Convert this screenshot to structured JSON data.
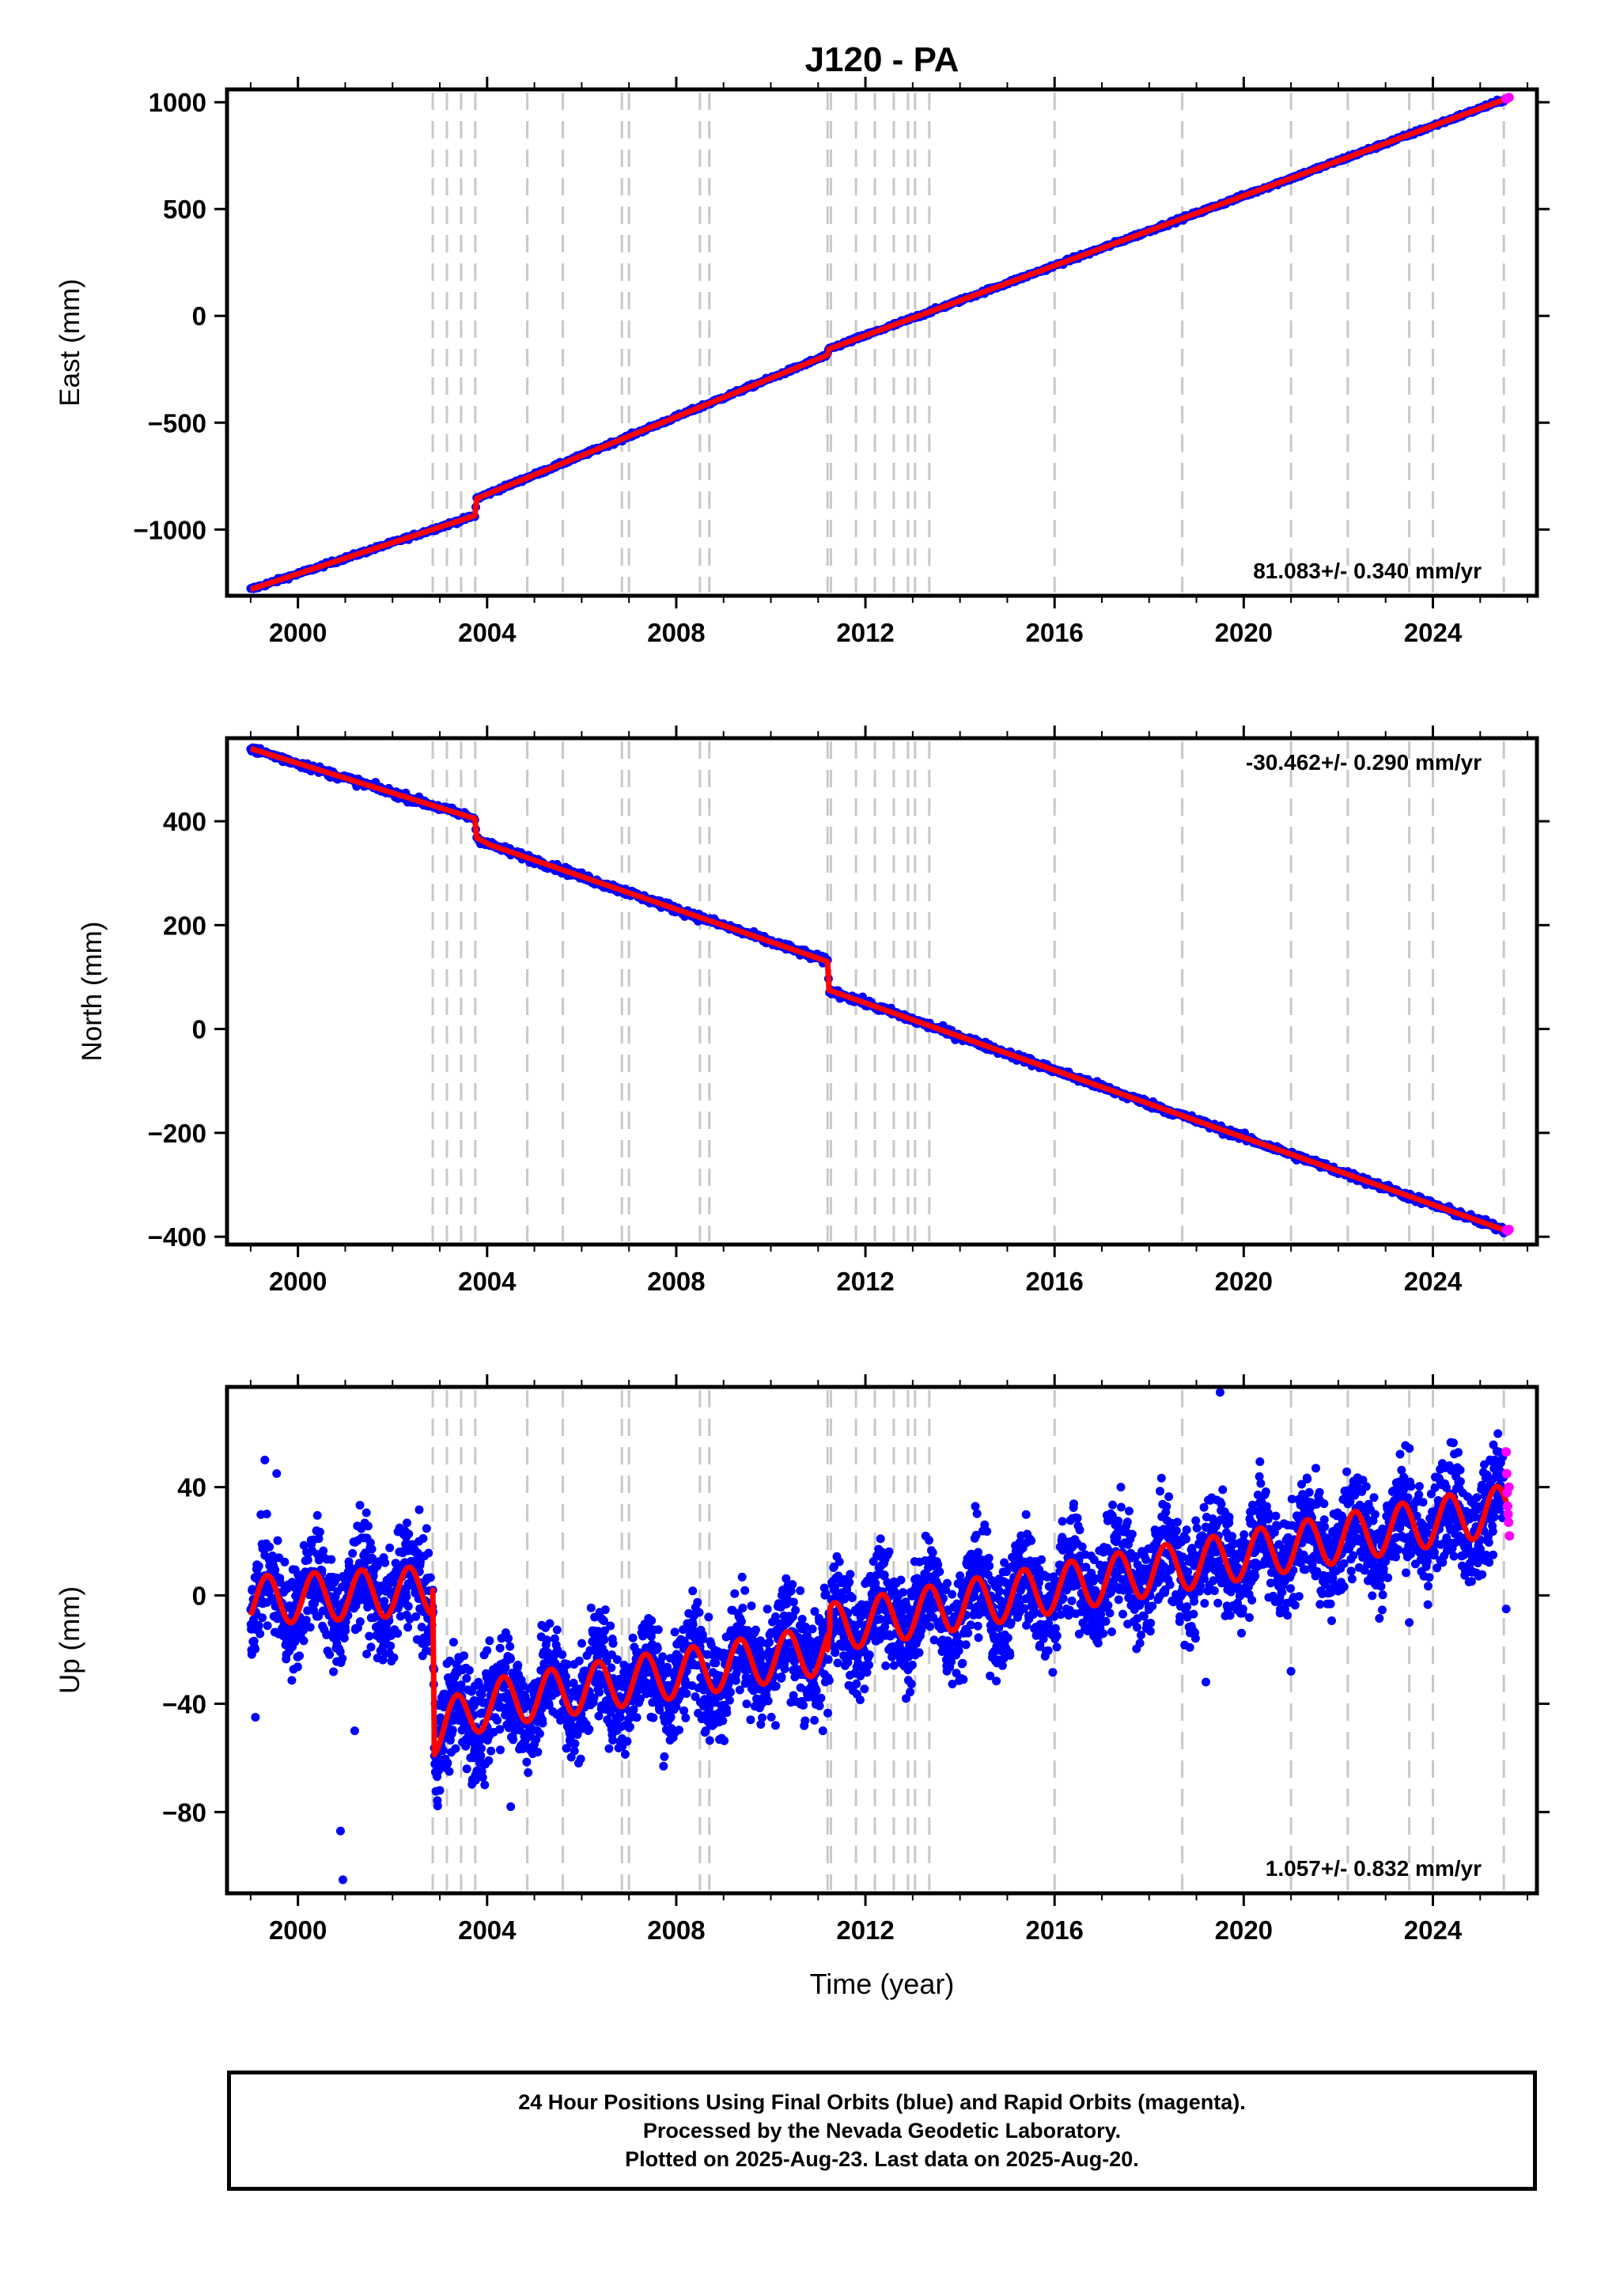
{
  "title": "J120 - PA",
  "xlabel": "Time (year)",
  "x_ticks": [
    "2000",
    "2004",
    "2008",
    "2012",
    "2016",
    "2020",
    "2024"
  ],
  "footer": {
    "line1": "24 Hour Positions Using Final Orbits (blue) and Rapid Orbits (magenta).",
    "line2": "Processed by the Nevada Geodetic Laboratory.",
    "line3": "Plotted on 2025-Aug-23. Last data on 2025-Aug-20."
  },
  "colors": {
    "final": "#0000ff",
    "rapid": "#ff00ff",
    "model": "#ff0000",
    "event_line": "#c8c8c8"
  },
  "chart_data": [
    {
      "type": "scatter",
      "ylabel": "East (mm)",
      "xlim": [
        1998.5,
        2026.2
      ],
      "ylim": [
        -1310,
        1060
      ],
      "y_ticks": [
        "1000",
        "500",
        "0",
        "−500",
        "−1000"
      ],
      "y_tick_values": [
        1000,
        500,
        0,
        -500,
        -1000
      ],
      "rate_label": "81.083+/- 0.340 mm/yr",
      "rate_position": "bottom-right",
      "event_lines": [
        2002.85,
        2003.15,
        2003.45,
        2003.75,
        2004.85,
        2005.6,
        2006.85,
        2007.0,
        2008.5,
        2008.7,
        2011.2,
        2011.27,
        2011.8,
        2012.2,
        2012.6,
        2012.9,
        2013.05,
        2013.35,
        2016.0,
        2018.7,
        2021.0,
        2022.2,
        2023.5,
        2024.0,
        2025.5
      ],
      "model_segments": [
        {
          "x": [
            1999.0,
            2003.74
          ],
          "y": [
            -1280,
            -935
          ]
        },
        {
          "x": [
            2003.74,
            2003.78
          ],
          "y": [
            -935,
            -855
          ]
        },
        {
          "x": [
            2003.78,
            2004.05
          ],
          "y": [
            -855,
            -830
          ]
        },
        {
          "x": [
            2004.05,
            2011.2
          ],
          "y": [
            -830,
            -183
          ]
        },
        {
          "x": [
            2011.2,
            2011.23
          ],
          "y": [
            -183,
            -155
          ]
        },
        {
          "x": [
            2011.23,
            2025.6
          ],
          "y": [
            -155,
            1020
          ]
        }
      ],
      "scatter_spread": 6,
      "rapid_points": {
        "x": [
          2025.55,
          2025.58,
          2025.61
        ],
        "y": [
          1016,
          1019,
          1022
        ]
      }
    },
    {
      "type": "scatter",
      "ylabel": "North (mm)",
      "xlim": [
        1998.5,
        2026.2
      ],
      "ylim": [
        -415,
        560
      ],
      "y_ticks": [
        "400",
        "200",
        "0",
        "−200",
        "−400"
      ],
      "y_tick_values": [
        400,
        200,
        0,
        -200,
        -400
      ],
      "rate_label": "-30.462+/- 0.290 mm/yr",
      "rate_position": "top-right",
      "event_lines": [
        2002.85,
        2003.15,
        2003.45,
        2003.75,
        2004.85,
        2005.6,
        2006.85,
        2007.0,
        2008.5,
        2008.7,
        2011.2,
        2011.27,
        2011.8,
        2012.2,
        2012.6,
        2012.9,
        2013.05,
        2013.35,
        2016.0,
        2018.7,
        2021.0,
        2022.2,
        2023.5,
        2024.0,
        2025.5
      ],
      "model_segments": [
        {
          "x": [
            1999.0,
            2003.74
          ],
          "y": [
            540,
            405
          ]
        },
        {
          "x": [
            2003.74,
            2003.78
          ],
          "y": [
            405,
            368
          ]
        },
        {
          "x": [
            2003.78,
            2004.05
          ],
          "y": [
            368,
            355
          ]
        },
        {
          "x": [
            2004.05,
            2011.2
          ],
          "y": [
            355,
            130
          ]
        },
        {
          "x": [
            2011.2,
            2011.23
          ],
          "y": [
            130,
            75
          ]
        },
        {
          "x": [
            2011.23,
            2025.6
          ],
          "y": [
            75,
            -390
          ]
        }
      ],
      "scatter_spread": 5,
      "rapid_points": {
        "x": [
          2025.55,
          2025.58,
          2025.61
        ],
        "y": [
          -387,
          -389,
          -386
        ]
      }
    },
    {
      "type": "scatter",
      "ylabel": "Up (mm)",
      "xlim": [
        1998.5,
        2026.2
      ],
      "ylim": [
        -110,
        77
      ],
      "y_ticks": [
        "40",
        "0",
        "−40",
        "−80"
      ],
      "y_tick_values": [
        40,
        0,
        -40,
        -80
      ],
      "rate_label": "1.057+/- 0.832 mm/yr",
      "rate_position": "bottom-right",
      "event_lines": [
        2002.85,
        2003.15,
        2003.45,
        2003.75,
        2004.85,
        2005.6,
        2006.85,
        2007.0,
        2008.5,
        2008.7,
        2011.2,
        2011.27,
        2011.8,
        2012.2,
        2012.6,
        2012.9,
        2013.05,
        2013.35,
        2016.0,
        2018.7,
        2021.0,
        2022.2,
        2023.5,
        2024.0,
        2025.5
      ],
      "model_segments": [
        {
          "x": [
            1999.0,
            2002.85
          ],
          "y": [
            -2,
            2
          ],
          "seasonal": 9
        },
        {
          "x": [
            2002.85,
            2002.88
          ],
          "y": [
            2,
            -50
          ]
        },
        {
          "x": [
            2002.88,
            2004.0
          ],
          "y": [
            -50,
            -40
          ],
          "seasonal": 9
        },
        {
          "x": [
            2004.0,
            2011.2
          ],
          "y": [
            -40,
            -20
          ],
          "seasonal": 9
        },
        {
          "x": [
            2011.2,
            2011.25
          ],
          "y": [
            -20,
            -12
          ]
        },
        {
          "x": [
            2011.25,
            2025.6
          ],
          "y": [
            -12,
            32
          ],
          "seasonal": 9
        }
      ],
      "scatter_spread": 14,
      "outliers": {
        "x": [
          1999.1,
          1999.3,
          1999.55,
          2000.9,
          2000.95,
          2001.2,
          2003.0,
          2003.2,
          2004.5,
          2005.0,
          2010.1,
          2011.1,
          2019.2,
          2019.5,
          2021.0,
          2023.5,
          2025.4,
          2025.55
        ],
        "y": [
          -45,
          50,
          45,
          -87,
          -105,
          -50,
          -72,
          -65,
          -78,
          -55,
          -48,
          -50,
          -32,
          75,
          -28,
          -10,
          53,
          -5
        ]
      },
      "rapid_points": {
        "x": [
          2025.55,
          2025.56,
          2025.57,
          2025.58,
          2025.59,
          2025.6,
          2025.61,
          2025.62
        ],
        "y": [
          53,
          45,
          38,
          33,
          30,
          27,
          40,
          22
        ]
      }
    }
  ]
}
